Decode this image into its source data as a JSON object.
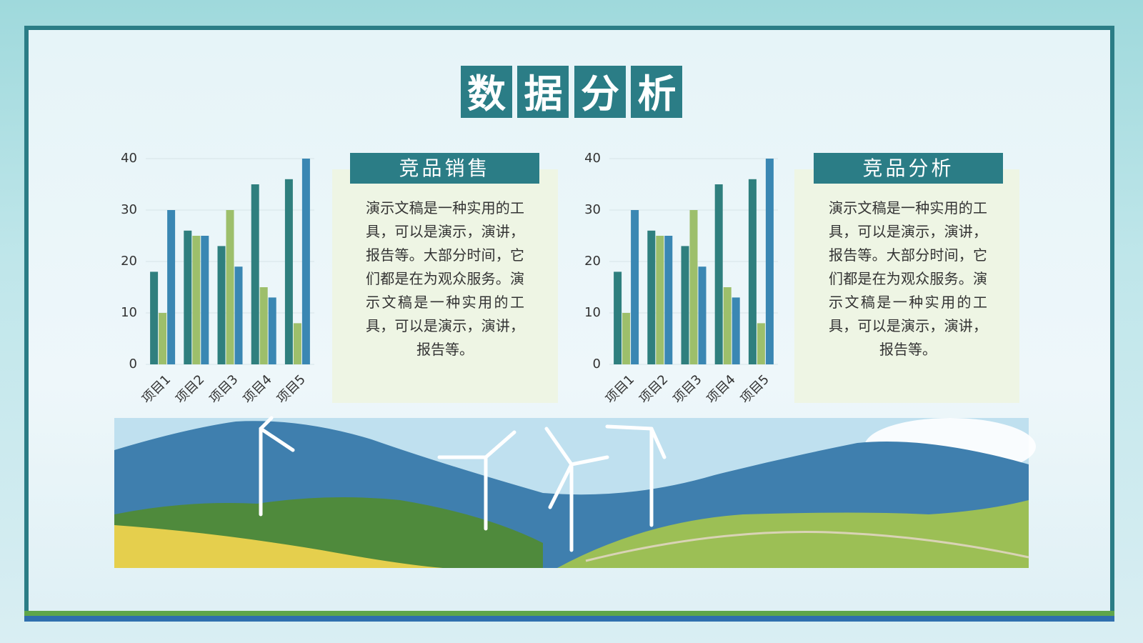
{
  "title": "数据分析",
  "panels": [
    {
      "heading": "竞品销售",
      "text": "演示文稿是一种实用的工具，可以是演示，演讲，报告等。大部分时间，它们都是在为观众服务。演示文稿是一种实用的工具，可以是演示，演讲，报告等。"
    },
    {
      "heading": "竞品分析",
      "text": "演示文稿是一种实用的工具，可以是演示，演讲，报告等。大部分时间，它们都是在为观众服务。演示文稿是一种实用的工具，可以是演示，演讲，报告等。"
    }
  ],
  "chart_data": [
    {
      "type": "bar",
      "categories": [
        "项目1",
        "项目2",
        "项目3",
        "项目4",
        "项目5"
      ],
      "series": [
        {
          "color": "#2f7f7e",
          "values": [
            18,
            26,
            23,
            35,
            36
          ]
        },
        {
          "color": "#9dbf6b",
          "values": [
            10,
            25,
            30,
            15,
            8
          ]
        },
        {
          "color": "#3a87b3",
          "values": [
            30,
            25,
            19,
            13,
            40
          ]
        }
      ],
      "ylim": [
        0,
        40
      ],
      "yticks": [
        0,
        10,
        20,
        30,
        40
      ],
      "grid": true
    },
    {
      "type": "bar",
      "categories": [
        "项目1",
        "项目2",
        "项目3",
        "项目4",
        "项目5"
      ],
      "series": [
        {
          "color": "#2f7f7e",
          "values": [
            18,
            26,
            23,
            35,
            36
          ]
        },
        {
          "color": "#9dbf6b",
          "values": [
            10,
            25,
            30,
            15,
            8
          ]
        },
        {
          "color": "#3a87b3",
          "values": [
            30,
            25,
            19,
            13,
            40
          ]
        }
      ],
      "ylim": [
        0,
        40
      ],
      "yticks": [
        0,
        10,
        20,
        30,
        40
      ],
      "grid": true
    }
  ]
}
